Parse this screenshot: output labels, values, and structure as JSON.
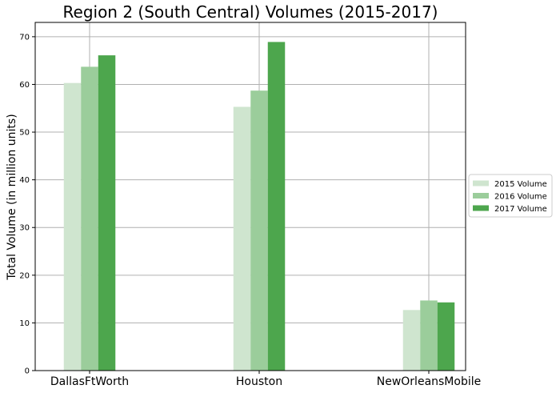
{
  "chart_data": {
    "type": "bar",
    "title": "Region 2 (South Central) Volumes (2015-2017)",
    "xlabel": "",
    "ylabel": "Total Volume (in million units)",
    "categories": [
      "DallasFtWorth",
      "Houston",
      "NewOrleansMobile"
    ],
    "series": [
      {
        "name": "2015 Volume",
        "color": "#cfe5cf",
        "values": [
          60.3,
          55.3,
          12.7
        ]
      },
      {
        "name": "2016 Volume",
        "color": "#9bcd9b",
        "values": [
          63.7,
          58.7,
          14.7
        ]
      },
      {
        "name": "2017 Volume",
        "color": "#4da64d",
        "values": [
          66.1,
          68.9,
          14.3
        ]
      }
    ],
    "ylim": [
      0,
      73
    ],
    "yticks": [
      0,
      10,
      20,
      30,
      40,
      50,
      60,
      70
    ],
    "grid": true,
    "legend_position": "right"
  }
}
